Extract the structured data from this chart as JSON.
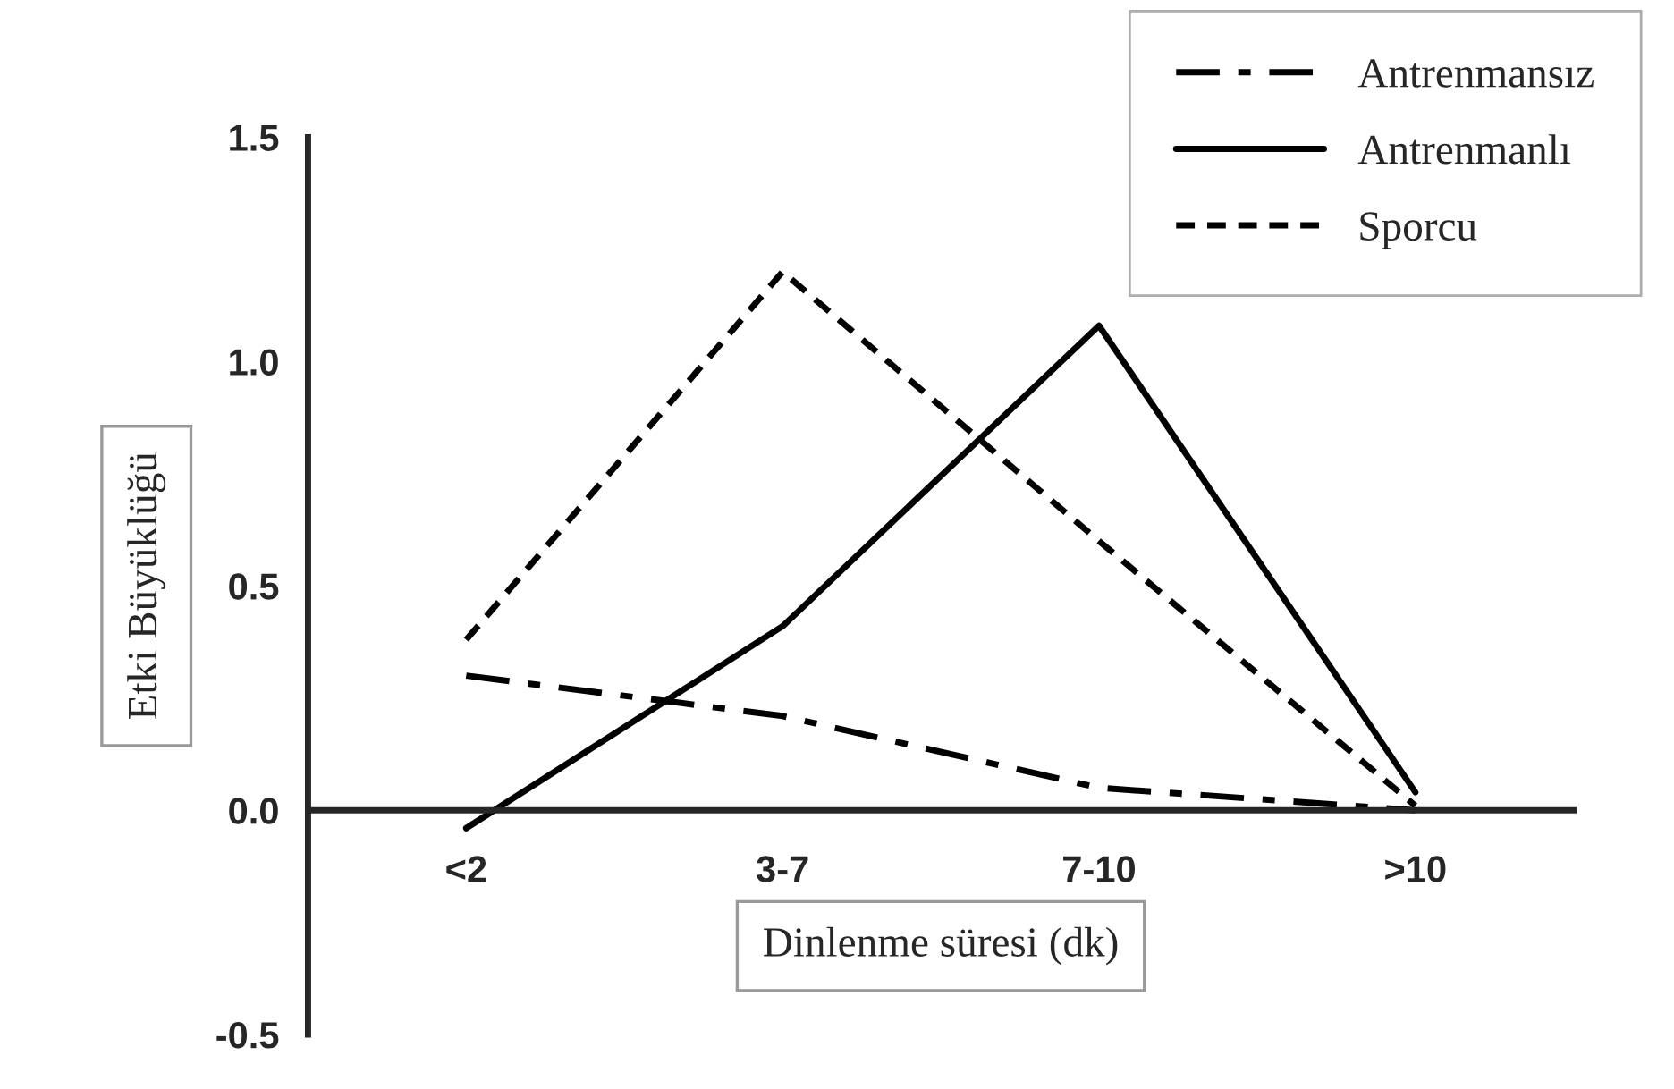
{
  "chart_data": {
    "type": "line",
    "xlabel": "Dinlenme süresi (dk)",
    "ylabel": "Etki Büyüklüğü",
    "categories": [
      "<2",
      "3-7",
      "7-10",
      ">10"
    ],
    "series": [
      {
        "name": "Antrenmansız",
        "color": "#000000",
        "line_style": "dashed",
        "values": [
          0.3,
          0.21,
          0.05,
          0.0
        ]
      },
      {
        "name": "Antrenmanlı",
        "color": "#000000",
        "line_style": "solid",
        "values": [
          -0.04,
          0.41,
          1.08,
          0.04
        ]
      },
      {
        "name": "Sporcu",
        "color": "#000000",
        "line_style": "dotted",
        "values": [
          0.38,
          1.2,
          0.6,
          0.01
        ]
      }
    ],
    "ylim": [
      -0.5,
      1.5
    ],
    "yticks": [
      {
        "value": -0.5,
        "label": "-0.5"
      },
      {
        "value": 0,
        "label": "0.0"
      },
      {
        "value": 0.5,
        "label": "0.5"
      },
      {
        "value": 1.0,
        "label": "1.0"
      },
      {
        "value": 1.5,
        "label": "1.5"
      }
    ],
    "grid": false,
    "legend": "top right",
    "marker": "none"
  }
}
